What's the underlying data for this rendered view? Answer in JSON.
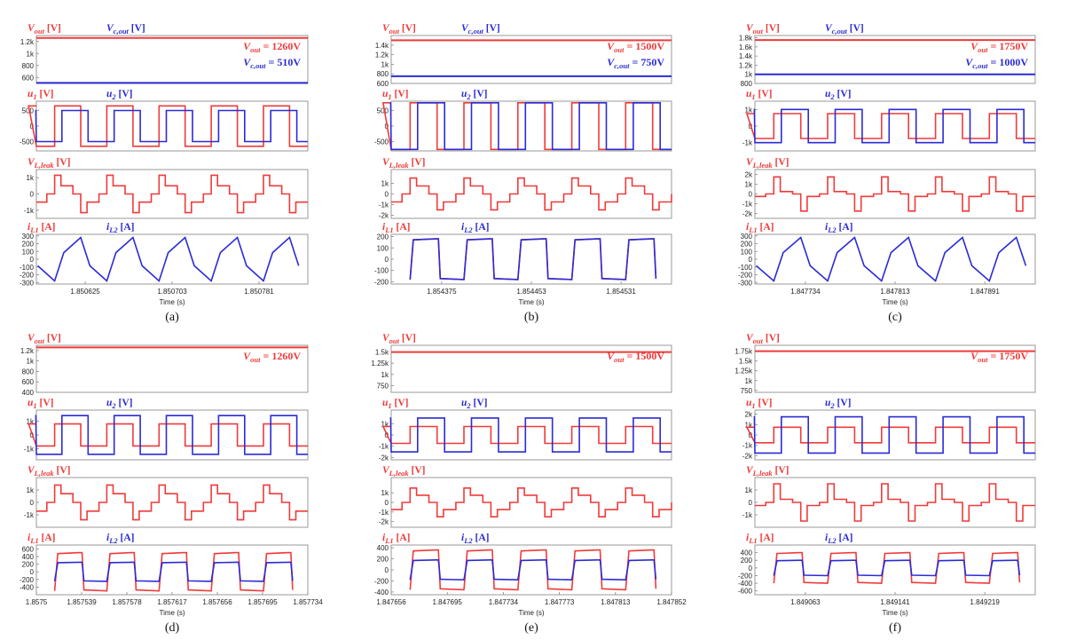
{
  "figure": {
    "colors": {
      "red": "#f03a3a",
      "blue": "#2b2bd6"
    },
    "axis_title": "Time (s)",
    "captions": [
      "(a)",
      "(b)",
      "(c)",
      "(d)",
      "(e)",
      "(f)"
    ]
  },
  "chart_data": [
    {
      "id": "a",
      "caption": "(a)",
      "type": "line",
      "xlabel": "Time (s)",
      "xticks": [
        "1.850625",
        "1.850703",
        "1.850781"
      ],
      "plots": [
        {
          "type": "line",
          "labels": [
            "Vout [V]",
            "Vc,out [V]"
          ],
          "ylim": [
            500,
            1300
          ],
          "yticks": [
            "1.2k",
            "1k",
            "800",
            "600"
          ],
          "annotations": [
            "Vout = 1260V",
            "Vc,out = 510V"
          ],
          "series": [
            {
              "name": "Vout",
              "values": [
                1260
              ]
            },
            {
              "name": "Vc,out",
              "values": [
                510
              ]
            }
          ]
        },
        {
          "type": "line",
          "labels": [
            "u1 [V]",
            "u2 [V]"
          ],
          "ylim": [
            -800,
            800
          ],
          "yticks": [
            "500",
            "0",
            "-500",
            "-1k"
          ],
          "series": [
            {
              "name": "u1",
              "levels": [
                650,
                -650
              ]
            },
            {
              "name": "u2",
              "levels": [
                500,
                -500
              ]
            }
          ]
        },
        {
          "type": "line",
          "labels": [
            "VL,leak [V]"
          ],
          "ylim": [
            -1500,
            1500
          ],
          "yticks": [
            "1k",
            "0",
            "-1k"
          ],
          "series": [
            {
              "name": "VL,leak",
              "levels": [
                1150,
                500,
                -500,
                -1150
              ]
            }
          ]
        },
        {
          "type": "line",
          "labels": [
            "iL1 [A]",
            "iL2 [A]"
          ],
          "ylim": [
            -320,
            320
          ],
          "yticks": [
            "300",
            "200",
            "100",
            "0",
            "-100",
            "-200",
            "-300"
          ],
          "series": [
            {
              "name": "iL",
              "peak": 280
            }
          ]
        }
      ]
    },
    {
      "id": "b",
      "caption": "(b)",
      "type": "line",
      "xlabel": "Time (s)",
      "xticks": [
        "1.854375",
        "1.854453",
        "1.854531"
      ],
      "plots": [
        {
          "type": "line",
          "labels": [
            "Vout [V]",
            "Vc,out [V]"
          ],
          "ylim": [
            600,
            1600
          ],
          "yticks": [
            "1.4k",
            "1.2k",
            "1k",
            "800",
            "600"
          ],
          "annotations": [
            "Vout = 1500V",
            "Vc,out = 750V"
          ],
          "series": [
            {
              "name": "Vout",
              "values": [
                1500
              ]
            },
            {
              "name": "Vc,out",
              "values": [
                750
              ]
            }
          ]
        },
        {
          "type": "line",
          "labels": [
            "u1 [V]",
            "u2 [V]"
          ],
          "ylim": [
            -800,
            800
          ],
          "yticks": [
            "500",
            "0",
            "-500",
            "-1k"
          ],
          "series": [
            {
              "name": "u1",
              "levels": [
                750,
                -750
              ]
            },
            {
              "name": "u2",
              "levels": [
                750,
                -750
              ]
            }
          ]
        },
        {
          "type": "line",
          "labels": [
            "VL,leak [V]"
          ],
          "ylim": [
            -2300,
            2300
          ],
          "yticks": [
            "1k",
            "0",
            "-1k",
            "-2k"
          ],
          "series": [
            {
              "name": "VL,leak",
              "levels": [
                1500,
                750,
                -750,
                -1500
              ]
            }
          ]
        },
        {
          "type": "line",
          "labels": [
            "iL1 [A]",
            "iL2 [A]"
          ],
          "ylim": [
            -220,
            220
          ],
          "yticks": [
            "200",
            "100",
            "0",
            "-100",
            "-200"
          ],
          "series": [
            {
              "name": "iL",
              "peak": 180
            }
          ]
        }
      ]
    },
    {
      "id": "c",
      "caption": "(c)",
      "type": "line",
      "xlabel": "Time (s)",
      "xticks": [
        "1.847734",
        "1.847813",
        "1.847891"
      ],
      "plots": [
        {
          "type": "line",
          "labels": [
            "Vout [V]",
            "Vc,out [V]"
          ],
          "ylim": [
            800,
            1850
          ],
          "yticks": [
            "1.8k",
            "1.6k",
            "1.4k",
            "1.2k",
            "1k",
            "800"
          ],
          "annotations": [
            "Vout = 1750V",
            "Vc,out = 1000V"
          ],
          "series": [
            {
              "name": "Vout",
              "values": [
                1750
              ]
            },
            {
              "name": "Vc,out",
              "values": [
                1000
              ]
            }
          ]
        },
        {
          "type": "line",
          "labels": [
            "u1 [V]",
            "u2 [V]"
          ],
          "ylim": [
            -1500,
            1500
          ],
          "yticks": [
            "1k",
            "0",
            "-1k"
          ],
          "series": [
            {
              "name": "u1",
              "levels": [
                750,
                -750
              ]
            },
            {
              "name": "u2",
              "levels": [
                1000,
                -1000
              ]
            }
          ]
        },
        {
          "type": "line",
          "labels": [
            "VL,leak [V]"
          ],
          "ylim": [
            -2500,
            2500
          ],
          "yticks": [
            "2k",
            "1k",
            "0",
            "-1k",
            "-2k"
          ],
          "series": [
            {
              "name": "VL,leak",
              "levels": [
                1750,
                250,
                -250,
                -1750
              ]
            }
          ]
        },
        {
          "type": "line",
          "labels": [
            "iL1 [A]",
            "iL2 [A]"
          ],
          "ylim": [
            -320,
            320
          ],
          "yticks": [
            "300",
            "200",
            "100",
            "0",
            "-100",
            "-200",
            "-300"
          ],
          "series": [
            {
              "name": "iL",
              "peak": 280
            }
          ]
        }
      ]
    },
    {
      "id": "d",
      "caption": "(d)",
      "type": "line",
      "xlabel": "Time (s)",
      "xticks": [
        "1.8575",
        "1.857539",
        "1.857578",
        "1.857617",
        "1.857656",
        "1.857695",
        "1.857734"
      ],
      "plots": [
        {
          "type": "line",
          "labels": [
            "Vout [V]"
          ],
          "ylim": [
            400,
            1300
          ],
          "yticks": [
            "1.2k",
            "1k",
            "800",
            "600",
            "400"
          ],
          "annotations": [
            "Vout = 1260V"
          ],
          "series": [
            {
              "name": "Vout",
              "values": [
                1260
              ]
            }
          ]
        },
        {
          "type": "line",
          "labels": [
            "u1 [V]",
            "u2 [V]"
          ],
          "ylim": [
            -1800,
            1800
          ],
          "yticks": [
            "1k",
            "0",
            "-1k"
          ],
          "series": [
            {
              "name": "u1",
              "levels": [
                800,
                -800
              ]
            },
            {
              "name": "u2",
              "levels": [
                1400,
                -1400
              ]
            }
          ]
        },
        {
          "type": "line",
          "labels": [
            "VL,leak [V]"
          ],
          "ylim": [
            -2000,
            2000
          ],
          "yticks": [
            "1k",
            "0",
            "-1k"
          ],
          "series": [
            {
              "name": "VL,leak",
              "levels": [
                1400,
                700,
                -700,
                -1400
              ]
            }
          ]
        },
        {
          "type": "line",
          "labels": [
            "iL1 [A]",
            "iL2 [A]"
          ],
          "ylim": [
            -600,
            700
          ],
          "yticks": [
            "600",
            "400",
            "200",
            "0",
            "-200",
            "-400"
          ],
          "series": [
            {
              "name": "iL1",
              "peak": 500
            },
            {
              "name": "iL2",
              "peak": 250
            }
          ]
        }
      ]
    },
    {
      "id": "e",
      "caption": "(e)",
      "type": "line",
      "xlabel": "Time (s)",
      "xticks": [
        "1.847656",
        "1.847695",
        "1.847734",
        "1.847773",
        "1.847813",
        "1.847852"
      ],
      "plots": [
        {
          "type": "line",
          "labels": [
            "Vout [V]"
          ],
          "ylim": [
            600,
            1650
          ],
          "yticks": [
            "1.5k",
            "1.25k",
            "1k",
            "750"
          ],
          "annotations": [
            "Vout = 1500V"
          ],
          "series": [
            {
              "name": "Vout",
              "values": [
                1500
              ]
            }
          ]
        },
        {
          "type": "line",
          "labels": [
            "u1 [V]",
            "u2 [V]"
          ],
          "ylim": [
            -2200,
            2200
          ],
          "yticks": [
            "1k",
            "0",
            "-1k",
            "-2k"
          ],
          "series": [
            {
              "name": "u1",
              "levels": [
                750,
                -750
              ]
            },
            {
              "name": "u2",
              "levels": [
                1500,
                -1500
              ]
            }
          ]
        },
        {
          "type": "line",
          "labels": [
            "VL,leak [V]"
          ],
          "ylim": [
            -2600,
            2600
          ],
          "yticks": [
            "1k",
            "0",
            "-1k",
            "-2k"
          ],
          "series": [
            {
              "name": "VL,leak",
              "levels": [
                1500,
                750,
                -750,
                -1500
              ]
            }
          ]
        },
        {
          "type": "line",
          "labels": [
            "iL1 [A]",
            "iL2 [A]"
          ],
          "ylim": [
            -450,
            450
          ],
          "yticks": [
            "400",
            "200",
            "0",
            "-200",
            "-400"
          ],
          "series": [
            {
              "name": "iL1",
              "peak": 360
            },
            {
              "name": "iL2",
              "peak": 180
            }
          ]
        }
      ]
    },
    {
      "id": "f",
      "caption": "(f)",
      "type": "line",
      "xlabel": "Time (s)",
      "xticks": [
        "1.849063",
        "1.849141",
        "1.849219"
      ],
      "plots": [
        {
          "type": "line",
          "labels": [
            "Vout [V]"
          ],
          "ylim": [
            700,
            1900
          ],
          "yticks": [
            "1.75k",
            "1.5k",
            "1.25k",
            "1k",
            "750"
          ],
          "annotations": [
            "Vout = 1750V"
          ],
          "series": [
            {
              "name": "Vout",
              "values": [
                1750
              ]
            }
          ]
        },
        {
          "type": "line",
          "labels": [
            "u1 [V]",
            "u2 [V]"
          ],
          "ylim": [
            -2400,
            2400
          ],
          "yticks": [
            "2k",
            "1k",
            "0",
            "-1k",
            "-2k"
          ],
          "series": [
            {
              "name": "u1",
              "levels": [
                750,
                -750
              ]
            },
            {
              "name": "u2",
              "levels": [
                1750,
                -1750
              ]
            }
          ]
        },
        {
          "type": "line",
          "labels": [
            "VL,leak [V]"
          ],
          "ylim": [
            -2000,
            2000
          ],
          "yticks": [
            "1k",
            "0",
            "-1k"
          ],
          "series": [
            {
              "name": "VL,leak",
              "levels": [
                1500,
                250,
                -250,
                -1500
              ]
            }
          ]
        },
        {
          "type": "line",
          "labels": [
            "iL1 [A]",
            "iL2 [A]"
          ],
          "ylim": [
            -700,
            600
          ],
          "yticks": [
            "400",
            "200",
            "0",
            "-200",
            "-400",
            "-600"
          ],
          "series": [
            {
              "name": "iL1",
              "peak": 400
            },
            {
              "name": "iL2",
              "peak": 200
            }
          ]
        }
      ]
    }
  ]
}
